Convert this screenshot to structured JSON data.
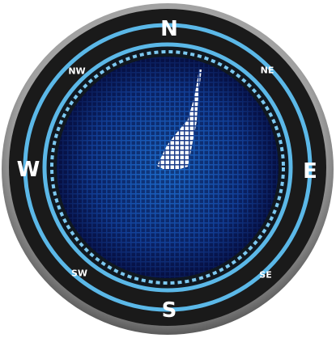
{
  "compass": {
    "labels": {
      "n": "N",
      "e": "E",
      "s": "S",
      "w": "W",
      "ne": "NE",
      "se": "SE",
      "sw": "SW",
      "nw": "NW"
    },
    "heading_degrees": 15,
    "colors": {
      "bezel_outer": "#8a8a8a",
      "bezel_inner": "#1a1a1a",
      "ring": "#5bb8e8",
      "face_center": "#1e6fd0",
      "face_edge": "#0a1a55",
      "needle": "#ffffff",
      "text": "#ffffff"
    }
  }
}
